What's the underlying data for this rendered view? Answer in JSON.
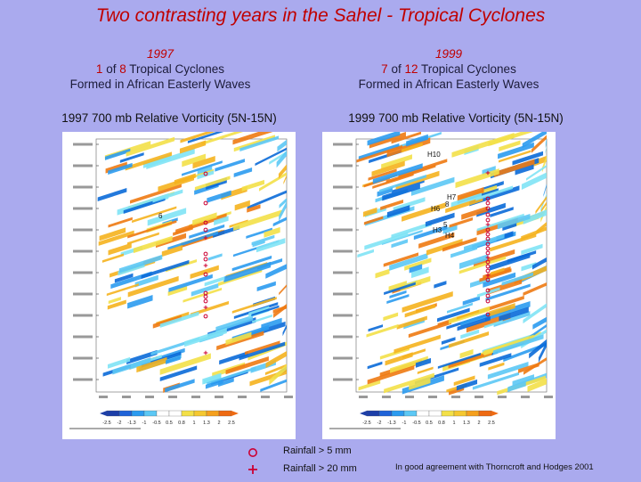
{
  "title": "Two contrasting years in the Sahel - Tropical Cyclones",
  "left": {
    "year": "1997",
    "count": "1",
    "of": "of",
    "total": "8",
    "label": "Tropical Cyclones",
    "subtitle": "Formed in African Easterly Waves",
    "panel_title": "1997 700 mb Relative Vorticity (5N-15N)",
    "storm_labels": [
      "6"
    ]
  },
  "right": {
    "year": "1999",
    "count": "7",
    "of": "of",
    "total": "12",
    "label": "Tropical Cyclones",
    "subtitle": "Formed in African Easterly Waves",
    "panel_title": "1999 700 mb Relative Vorticity (5N-15N)",
    "storm_labels": [
      "H10",
      "H7",
      "8",
      "H6",
      "5",
      "H3",
      "H4"
    ]
  },
  "colorbar_ticks": [
    "-2.5",
    "-2",
    "-1.3",
    "-1",
    "-0.5",
    "0.5",
    "0.8",
    "1",
    "1.3",
    "2",
    "2.5"
  ],
  "legend": {
    "circle_label": "Rainfall >  5 mm",
    "plus_label": "Rainfall > 20 mm"
  },
  "note": "In good agreement with Thorncroft and Hodges 2001",
  "colors": {
    "background": "#aaaaee",
    "title": "#c00000",
    "marker": "#cc0033"
  }
}
